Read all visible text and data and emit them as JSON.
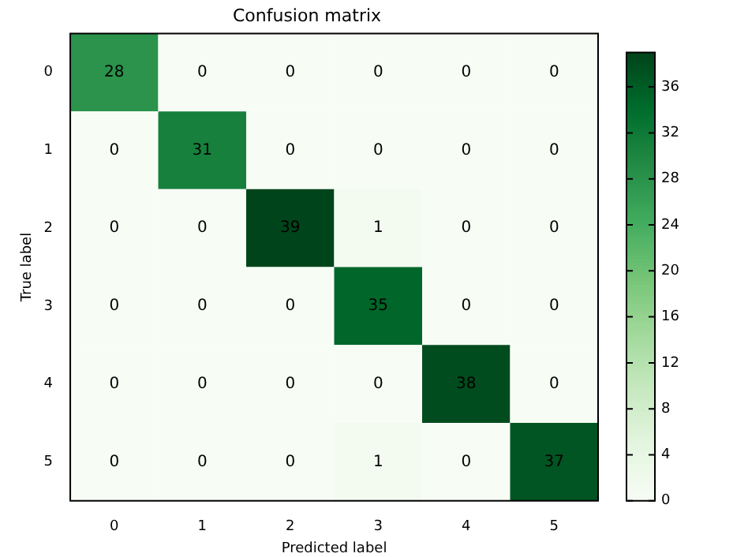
{
  "chart_data": {
    "type": "heatmap",
    "title": "Confusion matrix",
    "xlabel": "Predicted label",
    "ylabel": "True label",
    "categories": [
      "0",
      "1",
      "2",
      "3",
      "4",
      "5"
    ],
    "y_categories": [
      "0",
      "1",
      "2",
      "3",
      "4",
      "5"
    ],
    "cells": [
      [
        28,
        0,
        0,
        0,
        0,
        0
      ],
      [
        0,
        31,
        0,
        0,
        0,
        0
      ],
      [
        0,
        0,
        39,
        1,
        0,
        0
      ],
      [
        0,
        0,
        0,
        35,
        0,
        0
      ],
      [
        0,
        0,
        0,
        0,
        38,
        0
      ],
      [
        0,
        0,
        0,
        1,
        0,
        37
      ]
    ],
    "clim": [
      0,
      39
    ],
    "cticks": [
      0,
      4,
      8,
      12,
      16,
      20,
      24,
      28,
      32,
      36
    ],
    "data_labels": true
  }
}
